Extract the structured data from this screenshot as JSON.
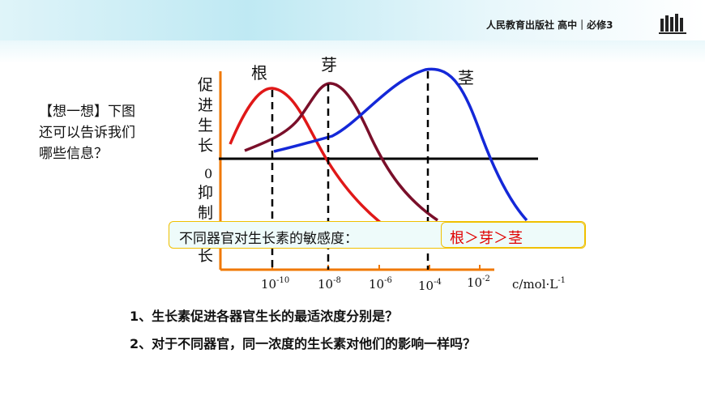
{
  "header": {
    "publisher": "人民教育出版社 高中｜必修3"
  },
  "think_prompt": {
    "line1": "【想一想】下图",
    "line2": "还可以告诉我们",
    "line3": "哪些信息？"
  },
  "chart_data": {
    "type": "line",
    "curves": [
      {
        "name": "根",
        "color": "#e01818",
        "peak_exponent": -10
      },
      {
        "name": "芽",
        "color": "#7a0f2a",
        "peak_exponent": -8
      },
      {
        "name": "茎",
        "color": "#1428d8",
        "peak_exponent": -4
      }
    ],
    "y_axis_top_label": [
      "促",
      "进",
      "生",
      "长"
    ],
    "y_axis_zero": "0",
    "y_axis_bottom_label": [
      "抑",
      "制",
      "长"
    ],
    "x_ticks": [
      {
        "base": "10",
        "exp": "-10"
      },
      {
        "base": "10",
        "exp": "-8"
      },
      {
        "base": "10",
        "exp": "-6"
      },
      {
        "base": "10",
        "exp": "-4"
      },
      {
        "base": "10",
        "exp": "-2"
      }
    ],
    "x_unit": "c/mol·L",
    "x_unit_exp": "-1"
  },
  "callout": {
    "label": "不同器官对生长素的敏感度：",
    "answer": "根＞芽＞茎"
  },
  "questions": {
    "q1": "1、生长素促进各器官生长的最适浓度分别是？",
    "q2": "2、对于不同器官，同一浓度的生长素对他们的影响一样吗？"
  },
  "colors": {
    "axis": "#f07800",
    "baseline": "#000000",
    "accent_border": "#f0c000",
    "answer": "#e00000"
  }
}
